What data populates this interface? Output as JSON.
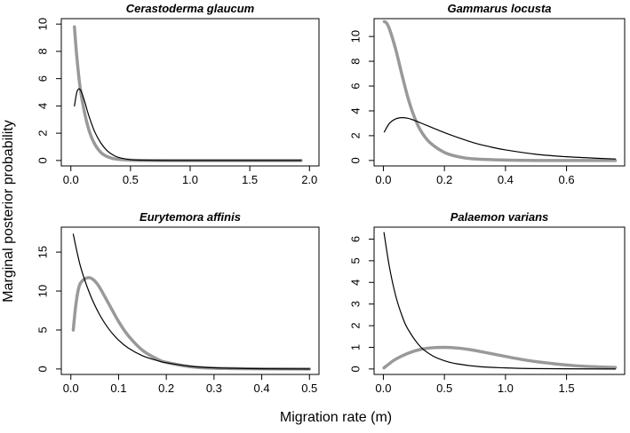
{
  "figure": {
    "ylabel": "Marginal posterior probability",
    "xlabel": "Migration rate (m)"
  },
  "chart_data": [
    {
      "type": "line",
      "title": "Cerastoderma glaucum",
      "xlim": [
        0,
        2.0
      ],
      "ylim": [
        0,
        10
      ],
      "xticks": [
        0.0,
        0.5,
        1.0,
        1.5,
        2.0
      ],
      "xtick_labels": [
        "0.0",
        "0.5",
        "1.0",
        "1.5",
        "2.0"
      ],
      "yticks": [
        0,
        2,
        4,
        6,
        8,
        10
      ],
      "ytick_labels": [
        "0",
        "2",
        "4",
        "6",
        "8",
        "10"
      ],
      "series": [
        {
          "color": "#999999",
          "width": 3.5,
          "x": [
            0.03,
            0.05,
            0.08,
            0.12,
            0.16,
            0.2,
            0.25,
            0.3,
            0.35,
            0.4,
            0.5,
            0.7,
            1.0,
            1.5,
            1.93
          ],
          "y": [
            9.8,
            7.6,
            5.2,
            3.3,
            2.0,
            1.2,
            0.6,
            0.3,
            0.15,
            0.08,
            0.02,
            0.0,
            0.0,
            0.0,
            0.0
          ]
        },
        {
          "color": "#000000",
          "width": 1.2,
          "x": [
            0.03,
            0.05,
            0.07,
            0.09,
            0.12,
            0.15,
            0.2,
            0.25,
            0.3,
            0.35,
            0.4,
            0.5,
            0.6,
            0.8,
            1.0,
            1.5,
            1.93
          ],
          "y": [
            4.0,
            5.0,
            5.25,
            5.0,
            4.2,
            3.3,
            2.1,
            1.3,
            0.75,
            0.42,
            0.22,
            0.06,
            0.02,
            0.0,
            0.0,
            0.0,
            0.0
          ]
        }
      ]
    },
    {
      "type": "line",
      "title": "Gammarus locusta",
      "xlim": [
        0,
        0.76
      ],
      "ylim": [
        0,
        11
      ],
      "xticks": [
        0.0,
        0.2,
        0.4,
        0.6
      ],
      "xtick_labels": [
        "0.0",
        "0.2",
        "0.4",
        "0.6"
      ],
      "yticks": [
        0,
        2,
        4,
        6,
        8,
        10
      ],
      "ytick_labels": [
        "0",
        "2",
        "4",
        "6",
        "8",
        "10"
      ],
      "series": [
        {
          "color": "#999999",
          "width": 3.5,
          "x": [
            0.003,
            0.01,
            0.02,
            0.04,
            0.06,
            0.08,
            0.1,
            0.12,
            0.15,
            0.2,
            0.25,
            0.3,
            0.4,
            0.5,
            0.6,
            0.76
          ],
          "y": [
            11.2,
            11.1,
            10.6,
            9.0,
            7.0,
            5.1,
            3.6,
            2.5,
            1.5,
            0.65,
            0.28,
            0.12,
            0.03,
            0.0,
            0.0,
            0.0
          ]
        },
        {
          "color": "#000000",
          "width": 1.2,
          "x": [
            0.003,
            0.02,
            0.04,
            0.06,
            0.08,
            0.1,
            0.12,
            0.15,
            0.2,
            0.25,
            0.3,
            0.35,
            0.4,
            0.5,
            0.6,
            0.7,
            0.76
          ],
          "y": [
            2.3,
            3.0,
            3.35,
            3.45,
            3.4,
            3.25,
            3.05,
            2.75,
            2.25,
            1.8,
            1.4,
            1.1,
            0.85,
            0.5,
            0.3,
            0.18,
            0.12
          ]
        }
      ]
    },
    {
      "type": "line",
      "title": "Eurytemora affinis",
      "xlim": [
        0,
        0.5
      ],
      "ylim": [
        0,
        17.5
      ],
      "xticks": [
        0.0,
        0.1,
        0.2,
        0.3,
        0.4,
        0.5
      ],
      "xtick_labels": [
        "0.0",
        "0.1",
        "0.2",
        "0.3",
        "0.4",
        "0.5"
      ],
      "yticks": [
        0,
        5,
        10,
        15
      ],
      "ytick_labels": [
        "0",
        "5",
        "10",
        "15"
      ],
      "series": [
        {
          "color": "#999999",
          "width": 3.5,
          "x": [
            0.005,
            0.01,
            0.015,
            0.02,
            0.03,
            0.04,
            0.05,
            0.06,
            0.08,
            0.1,
            0.12,
            0.15,
            0.18,
            0.2,
            0.25,
            0.3,
            0.4,
            0.5
          ],
          "y": [
            5.0,
            8.0,
            10.0,
            11.0,
            11.6,
            11.7,
            11.3,
            10.5,
            8.3,
            6.1,
            4.3,
            2.4,
            1.3,
            0.85,
            0.3,
            0.1,
            0.02,
            0.0
          ]
        },
        {
          "color": "#000000",
          "width": 1.2,
          "x": [
            0.005,
            0.02,
            0.04,
            0.06,
            0.08,
            0.1,
            0.12,
            0.15,
            0.18,
            0.2,
            0.25,
            0.3,
            0.4,
            0.5
          ],
          "y": [
            17.3,
            13.2,
            9.6,
            7.0,
            5.1,
            3.7,
            2.7,
            1.7,
            1.1,
            0.8,
            0.35,
            0.15,
            0.03,
            0.0
          ]
        }
      ]
    },
    {
      "type": "line",
      "title": "Palaemon varians",
      "xlim": [
        0,
        1.9
      ],
      "ylim": [
        0,
        6.3
      ],
      "xticks": [
        0.0,
        0.5,
        1.0,
        1.5
      ],
      "xtick_labels": [
        "0.0",
        "0.5",
        "1.0",
        "1.5"
      ],
      "yticks": [
        0,
        1,
        2,
        3,
        4,
        5,
        6
      ],
      "ytick_labels": [
        "0",
        "1",
        "2",
        "3",
        "4",
        "5",
        "6"
      ],
      "series": [
        {
          "color": "#999999",
          "width": 3.5,
          "x": [
            0.005,
            0.05,
            0.1,
            0.2,
            0.3,
            0.4,
            0.5,
            0.6,
            0.7,
            0.8,
            1.0,
            1.2,
            1.4,
            1.6,
            1.9
          ],
          "y": [
            0.05,
            0.25,
            0.45,
            0.72,
            0.9,
            0.98,
            1.0,
            0.97,
            0.9,
            0.8,
            0.58,
            0.38,
            0.24,
            0.14,
            0.07
          ]
        },
        {
          "color": "#000000",
          "width": 1.2,
          "x": [
            0.005,
            0.05,
            0.1,
            0.15,
            0.2,
            0.3,
            0.4,
            0.5,
            0.6,
            0.8,
            1.0,
            1.2,
            1.5,
            1.9
          ],
          "y": [
            6.3,
            4.7,
            3.4,
            2.5,
            1.85,
            1.05,
            0.62,
            0.38,
            0.24,
            0.1,
            0.05,
            0.02,
            0.01,
            0.0
          ]
        }
      ]
    }
  ]
}
